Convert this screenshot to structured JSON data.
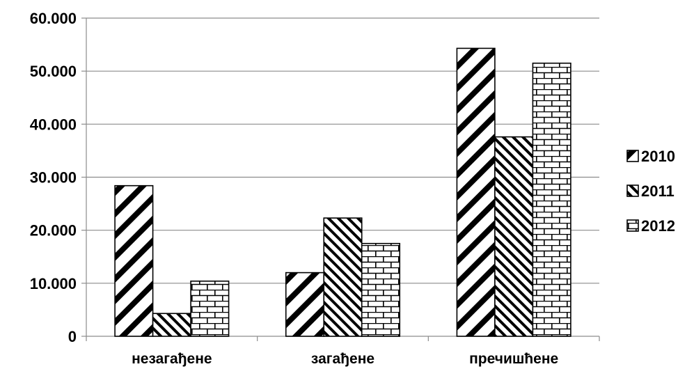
{
  "chart_data": {
    "type": "bar",
    "categories": [
      "незагађене",
      "загађене",
      "пречишћене"
    ],
    "series": [
      {
        "name": "2010",
        "values": [
          28400,
          12000,
          54300
        ],
        "pattern": "diagonal-up"
      },
      {
        "name": "2011",
        "values": [
          4300,
          22300,
          37600
        ],
        "pattern": "diagonal-down"
      },
      {
        "name": "2012",
        "values": [
          10400,
          17500,
          51500
        ],
        "pattern": "brick"
      }
    ],
    "ylim": [
      0,
      60000
    ],
    "yticks": [
      0,
      10000,
      20000,
      30000,
      40000,
      50000,
      60000
    ],
    "ytick_labels": [
      "0",
      "10.000",
      "20.000",
      "30.000",
      "40.000",
      "50.000",
      "60.000"
    ],
    "grid": true,
    "legend_position": "right",
    "title": "",
    "xlabel": "",
    "ylabel": ""
  }
}
